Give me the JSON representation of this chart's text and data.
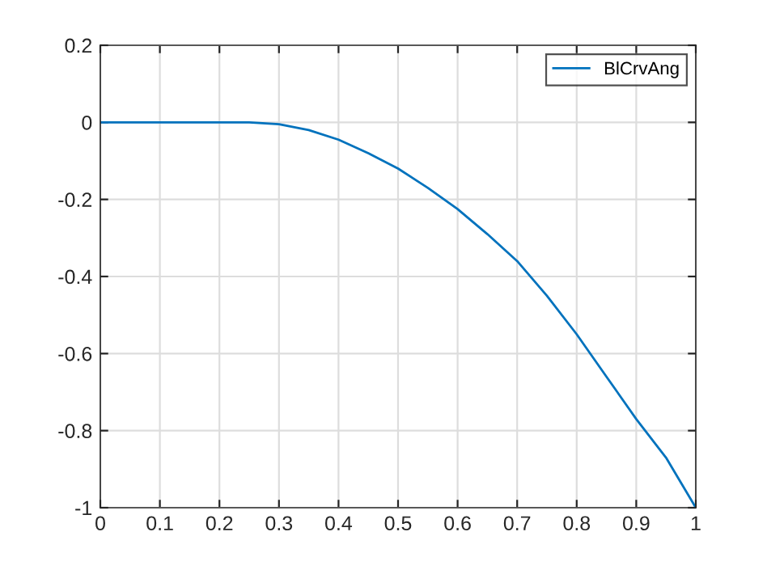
{
  "chart_data": {
    "type": "line",
    "x": [
      0,
      0.1,
      0.2,
      0.25,
      0.3,
      0.35,
      0.4,
      0.45,
      0.5,
      0.55,
      0.6,
      0.65,
      0.7,
      0.75,
      0.8,
      0.85,
      0.9,
      0.95,
      1.0
    ],
    "series": [
      {
        "name": "BlCrvAng",
        "color": "#0072bd",
        "values": [
          0,
          0,
          0,
          0,
          -0.005,
          -0.02,
          -0.045,
          -0.08,
          -0.12,
          -0.17,
          -0.225,
          -0.29,
          -0.36,
          -0.45,
          -0.55,
          -0.66,
          -0.77,
          -0.87,
          -1.0
        ]
      }
    ],
    "xlim": [
      0,
      1
    ],
    "ylim": [
      -1,
      0.2
    ],
    "xticks": [
      0,
      0.1,
      0.2,
      0.3,
      0.4,
      0.5,
      0.6,
      0.7,
      0.8,
      0.9,
      1
    ],
    "yticks": [
      -1,
      -0.8,
      -0.6,
      -0.4,
      -0.2,
      0,
      0.2
    ],
    "grid": true,
    "legend": "top right",
    "marker": "none",
    "line_style": "solid"
  }
}
